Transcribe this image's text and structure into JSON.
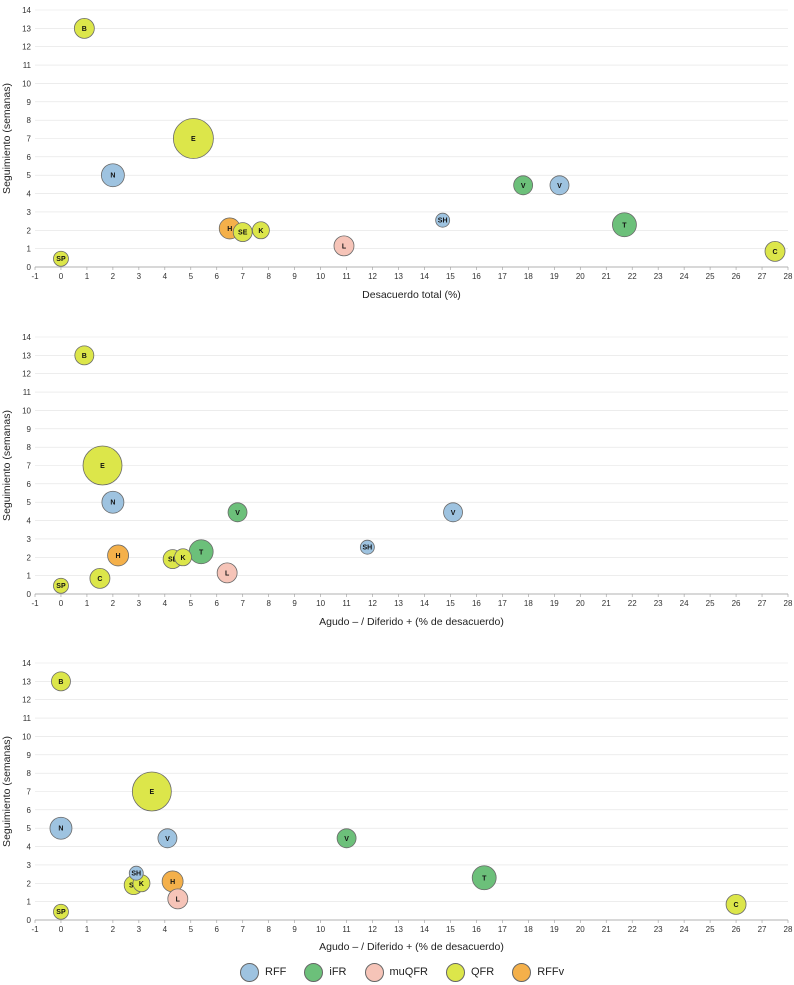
{
  "colors": {
    "RFF": "#9ec3e0",
    "iFR": "#6cc07a",
    "muQFR": "#f6c4b8",
    "QFR": "#dce64a",
    "RFFv": "#f4b04a"
  },
  "legend": [
    {
      "key": "RFF",
      "label": "RFF"
    },
    {
      "key": "iFR",
      "label": "iFR"
    },
    {
      "key": "muQFR",
      "label": "muQFR"
    },
    {
      "key": "QFR",
      "label": "QFR"
    },
    {
      "key": "RFFv",
      "label": "RFFv"
    }
  ],
  "chart_data": [
    {
      "type": "scatter",
      "title": "",
      "xlabel": "Desacuerdo total (%)",
      "ylabel": "Seguimiento (semanas)",
      "xlim": [
        -1,
        28
      ],
      "ylim": [
        0,
        14
      ],
      "xticks": [
        -1,
        0,
        1,
        2,
        3,
        4,
        5,
        6,
        7,
        8,
        9,
        10,
        11,
        12,
        13,
        14,
        15,
        16,
        17,
        18,
        19,
        20,
        21,
        22,
        23,
        24,
        25,
        26,
        27,
        28
      ],
      "yticks": [
        0,
        1,
        2,
        3,
        4,
        5,
        6,
        7,
        8,
        9,
        10,
        11,
        12,
        13,
        14
      ],
      "grid": "horizontal",
      "points": [
        {
          "label": "B",
          "group": "QFR",
          "x": 0.9,
          "y": 13.0,
          "size": 1.0
        },
        {
          "label": "E",
          "group": "QFR",
          "x": 5.1,
          "y": 7.0,
          "size": 2.0
        },
        {
          "label": "N",
          "group": "RFF",
          "x": 2.0,
          "y": 5.0,
          "size": 1.15
        },
        {
          "label": "V",
          "group": "iFR",
          "x": 17.8,
          "y": 4.45,
          "size": 0.95
        },
        {
          "label": "V",
          "group": "RFF",
          "x": 19.2,
          "y": 4.45,
          "size": 0.95
        },
        {
          "label": "SH",
          "group": "RFF",
          "x": 14.7,
          "y": 2.55,
          "size": 0.7
        },
        {
          "label": "T",
          "group": "iFR",
          "x": 21.7,
          "y": 2.3,
          "size": 1.2
        },
        {
          "label": "H",
          "group": "RFFv",
          "x": 6.5,
          "y": 2.1,
          "size": 1.05
        },
        {
          "label": "SE",
          "group": "QFR",
          "x": 7.0,
          "y": 1.9,
          "size": 0.95
        },
        {
          "label": "K",
          "group": "QFR",
          "x": 7.7,
          "y": 2.0,
          "size": 0.85
        },
        {
          "label": "L",
          "group": "muQFR",
          "x": 10.9,
          "y": 1.15,
          "size": 1.0
        },
        {
          "label": "C",
          "group": "QFR",
          "x": 27.5,
          "y": 0.85,
          "size": 1.0
        },
        {
          "label": "SP",
          "group": "QFR",
          "x": 0.0,
          "y": 0.45,
          "size": 0.75
        }
      ]
    },
    {
      "type": "scatter",
      "title": "",
      "xlabel": "Agudo – / Diferido + (% de desacuerdo)",
      "ylabel": "Seguimiento (semanas)",
      "xlim": [
        -1,
        28
      ],
      "ylim": [
        0,
        14
      ],
      "xticks": [
        -1,
        0,
        1,
        2,
        3,
        4,
        5,
        6,
        7,
        8,
        9,
        10,
        11,
        12,
        13,
        14,
        15,
        16,
        17,
        18,
        19,
        20,
        21,
        22,
        23,
        24,
        25,
        26,
        27,
        28
      ],
      "yticks": [
        0,
        1,
        2,
        3,
        4,
        5,
        6,
        7,
        8,
        9,
        10,
        11,
        12,
        13,
        14
      ],
      "grid": "horizontal",
      "points": [
        {
          "label": "B",
          "group": "QFR",
          "x": 0.9,
          "y": 13.0,
          "size": 0.95
        },
        {
          "label": "E",
          "group": "QFR",
          "x": 1.6,
          "y": 7.0,
          "size": 1.95
        },
        {
          "label": "N",
          "group": "RFF",
          "x": 2.0,
          "y": 5.0,
          "size": 1.1
        },
        {
          "label": "V",
          "group": "iFR",
          "x": 6.8,
          "y": 4.45,
          "size": 0.95
        },
        {
          "label": "V",
          "group": "RFF",
          "x": 15.1,
          "y": 4.45,
          "size": 0.95
        },
        {
          "label": "SH",
          "group": "RFF",
          "x": 11.8,
          "y": 2.55,
          "size": 0.7
        },
        {
          "label": "T",
          "group": "iFR",
          "x": 5.4,
          "y": 2.3,
          "size": 1.2
        },
        {
          "label": "H",
          "group": "RFFv",
          "x": 2.2,
          "y": 2.1,
          "size": 1.05
        },
        {
          "label": "SE",
          "group": "QFR",
          "x": 4.3,
          "y": 1.9,
          "size": 0.95
        },
        {
          "label": "K",
          "group": "QFR",
          "x": 4.7,
          "y": 2.0,
          "size": 0.85
        },
        {
          "label": "L",
          "group": "muQFR",
          "x": 6.4,
          "y": 1.15,
          "size": 1.0
        },
        {
          "label": "C",
          "group": "QFR",
          "x": 1.5,
          "y": 0.85,
          "size": 1.0
        },
        {
          "label": "SP",
          "group": "QFR",
          "x": 0.0,
          "y": 0.45,
          "size": 0.75
        }
      ]
    },
    {
      "type": "scatter",
      "title": "",
      "xlabel": "Agudo – / Diferido + (% de desacuerdo)",
      "ylabel": "Seguimiento (semanas)",
      "xlim": [
        -1,
        28
      ],
      "ylim": [
        0,
        14
      ],
      "xticks": [
        -1,
        0,
        1,
        2,
        3,
        4,
        5,
        6,
        7,
        8,
        9,
        10,
        11,
        12,
        13,
        14,
        15,
        16,
        17,
        18,
        19,
        20,
        21,
        22,
        23,
        24,
        25,
        26,
        27,
        28
      ],
      "yticks": [
        0,
        1,
        2,
        3,
        4,
        5,
        6,
        7,
        8,
        9,
        10,
        11,
        12,
        13,
        14
      ],
      "grid": "horizontal",
      "points": [
        {
          "label": "B",
          "group": "QFR",
          "x": 0.0,
          "y": 13.0,
          "size": 0.95
        },
        {
          "label": "E",
          "group": "QFR",
          "x": 3.5,
          "y": 7.0,
          "size": 1.95
        },
        {
          "label": "N",
          "group": "RFF",
          "x": 0.0,
          "y": 5.0,
          "size": 1.1
        },
        {
          "label": "V",
          "group": "RFF",
          "x": 4.1,
          "y": 4.45,
          "size": 0.95
        },
        {
          "label": "V",
          "group": "iFR",
          "x": 11.0,
          "y": 4.45,
          "size": 0.95
        },
        {
          "label": "SH",
          "group": "RFF",
          "x": 2.9,
          "y": 2.55,
          "size": 0.7
        },
        {
          "label": "T",
          "group": "iFR",
          "x": 16.3,
          "y": 2.3,
          "size": 1.2
        },
        {
          "label": "H",
          "group": "RFFv",
          "x": 4.3,
          "y": 2.1,
          "size": 1.05
        },
        {
          "label": "SE",
          "group": "QFR",
          "x": 2.8,
          "y": 1.9,
          "size": 0.95
        },
        {
          "label": "K",
          "group": "QFR",
          "x": 3.1,
          "y": 2.0,
          "size": 0.85
        },
        {
          "label": "L",
          "group": "muQFR",
          "x": 4.5,
          "y": 1.15,
          "size": 1.0
        },
        {
          "label": "C",
          "group": "QFR",
          "x": 26.0,
          "y": 0.85,
          "size": 1.0
        },
        {
          "label": "SP",
          "group": "QFR",
          "x": 0.0,
          "y": 0.45,
          "size": 0.75
        }
      ]
    }
  ]
}
